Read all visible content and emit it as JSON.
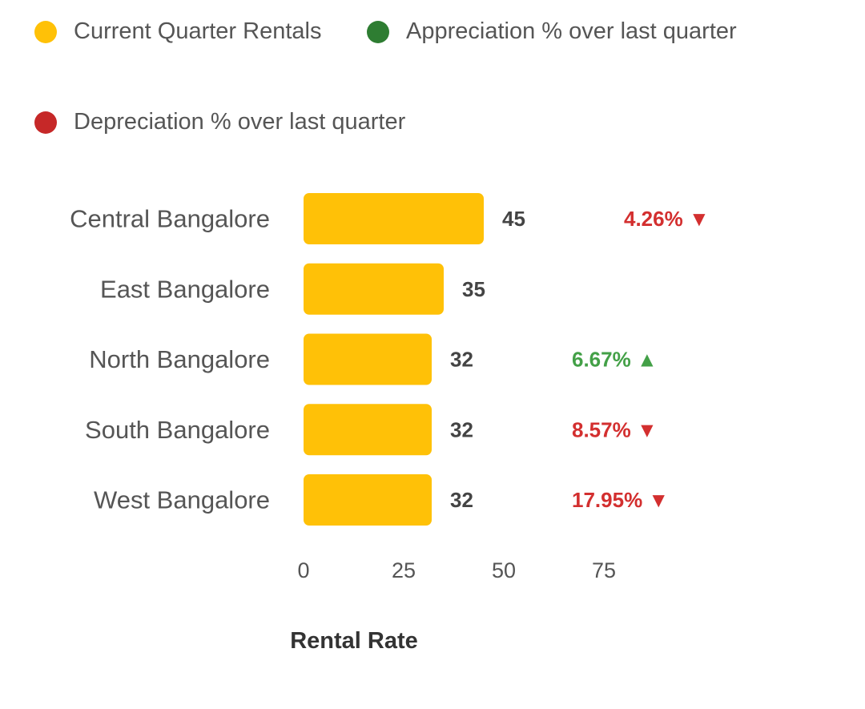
{
  "legend": {
    "items": [
      {
        "label": "Current Quarter Rentals",
        "color": "#FFC107"
      },
      {
        "label": "Appreciation % over last quarter",
        "color": "#2E7D32"
      },
      {
        "label": "Depreciation % over last quarter",
        "color": "#C62828"
      }
    ]
  },
  "chart_data": {
    "type": "bar",
    "orientation": "horizontal",
    "categories": [
      "Central Bangalore",
      "East Bangalore",
      "North Bangalore",
      "South Bangalore",
      "West Bangalore"
    ],
    "values": [
      45,
      35,
      32,
      32,
      32
    ],
    "value_labels": [
      "45",
      "35",
      "32",
      "32",
      "32"
    ],
    "changes": [
      {
        "text": "4.26%",
        "direction": "down"
      },
      null,
      {
        "text": "6.67%",
        "direction": "up"
      },
      {
        "text": "8.57%",
        "direction": "down"
      },
      {
        "text": "17.95%",
        "direction": "down"
      }
    ],
    "colors": {
      "bar": "#FFC107",
      "up": "#43A047",
      "down": "#D32F2F"
    },
    "xticks": [
      0,
      25,
      50,
      75
    ],
    "xlim": [
      0,
      75
    ],
    "xlabel": "Rental Rate",
    "ylabel": "",
    "grid": false
  }
}
